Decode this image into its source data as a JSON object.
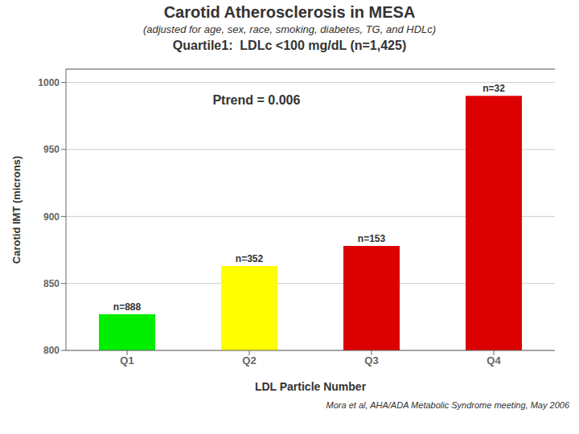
{
  "chart_data": {
    "type": "bar",
    "title": "Carotid Atherosclerosis in MESA",
    "subtitle": "(adjusted for age, sex, race, smoking, diabetes, TG, and HDLc)",
    "annotations": [
      "Quartile1:  LDLc <100 mg/dL (n=1,425)",
      "Ptrend = 0.006",
      "Mora et al, AHA/ADA Metabolic Syndrome meeting, May 2006"
    ],
    "categories": [
      "Q1",
      "Q2",
      "Q3",
      "Q4"
    ],
    "values": [
      827,
      863,
      878,
      990
    ],
    "colors": [
      "#00ee00",
      "#ffff00",
      "#dd0000",
      "#dd0000"
    ],
    "bar_labels": [
      "n=888",
      "n=352",
      "n=153",
      "n=32"
    ],
    "xlabel": "LDL Particle Number",
    "ylabel": "Carotid IMT (microns)",
    "ylim": [
      800,
      1010
    ],
    "yticks": [
      800,
      850,
      900,
      950,
      1000
    ],
    "grid": true
  }
}
